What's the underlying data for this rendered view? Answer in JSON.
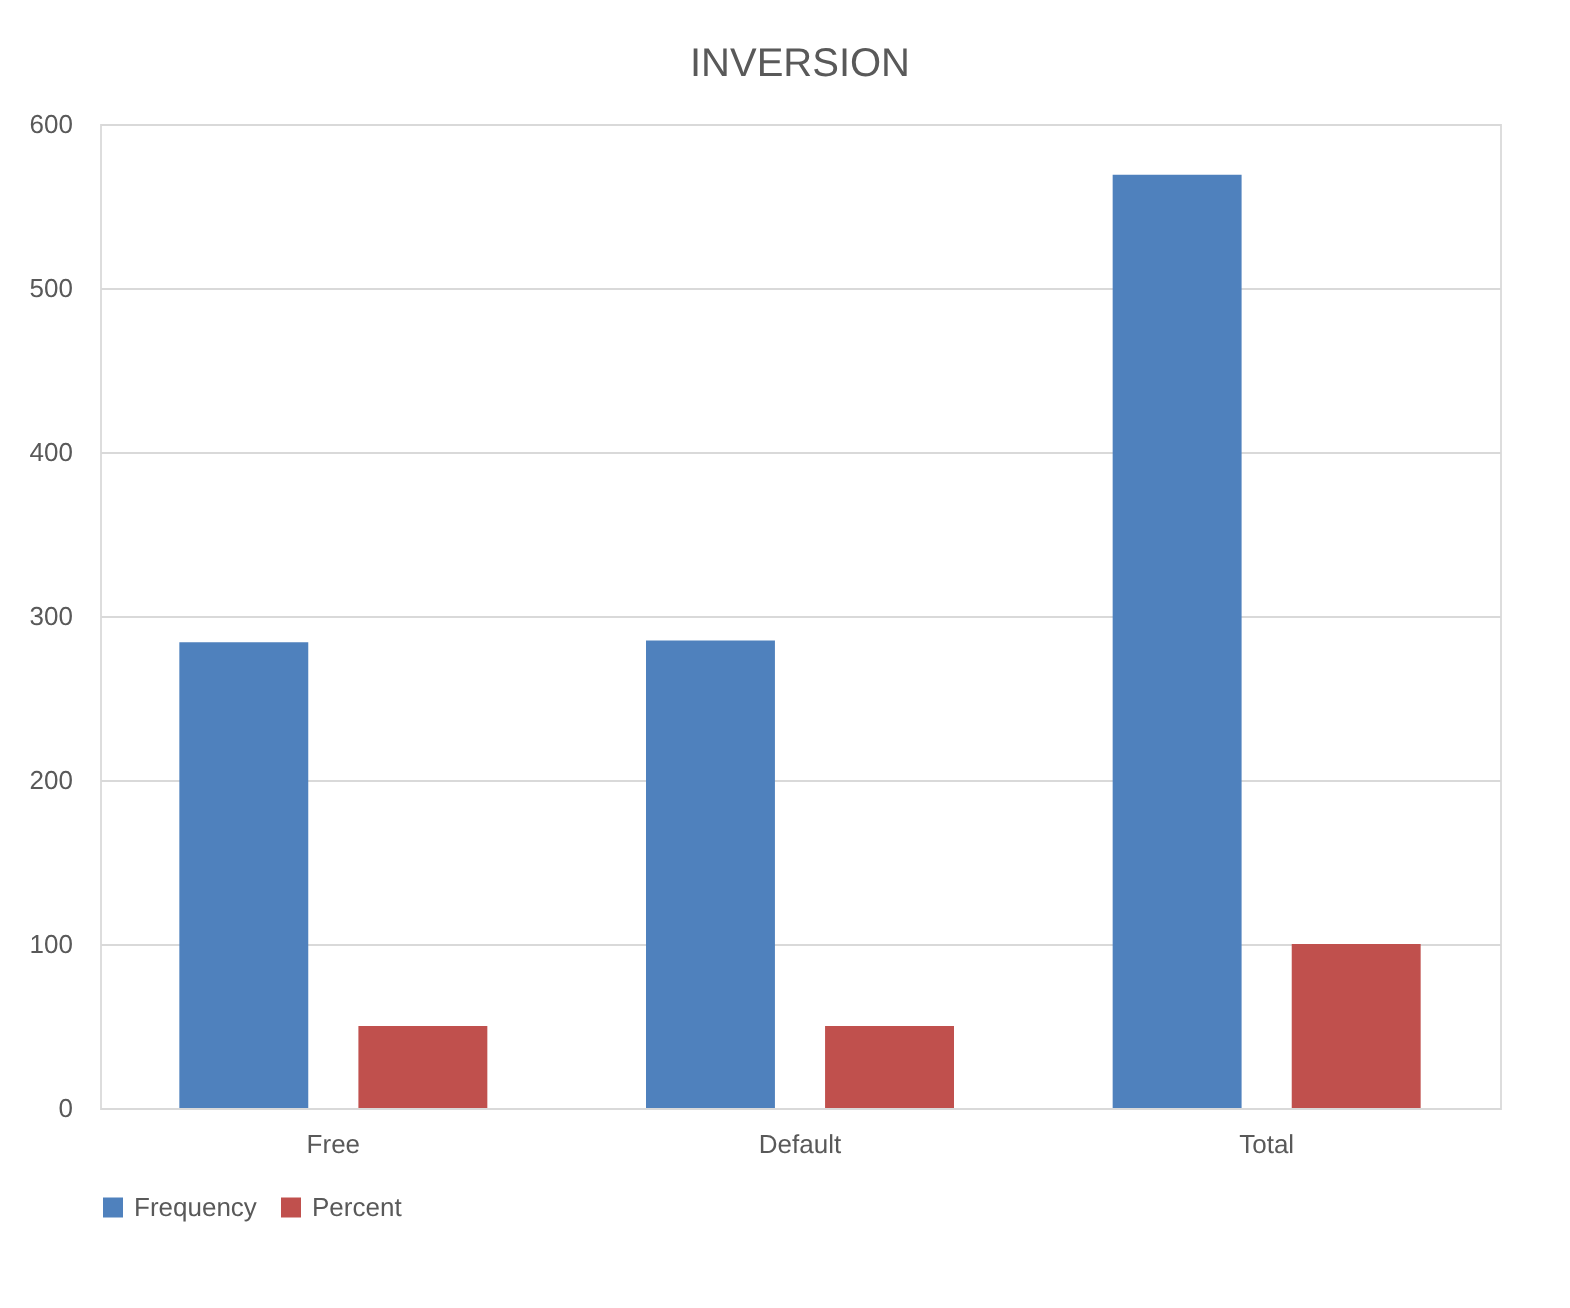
{
  "chart_data": {
    "type": "bar",
    "title": "INVERSION",
    "categories": [
      "Free",
      "Default",
      "Total"
    ],
    "series": [
      {
        "name": "Frequency",
        "color": "#4f81bd",
        "values": [
          284,
          285,
          569
        ]
      },
      {
        "name": "Percent",
        "color": "#c0504d",
        "values": [
          50,
          50,
          100
        ]
      }
    ],
    "ylim": [
      0,
      600
    ],
    "yticks": [
      0,
      100,
      200,
      300,
      400,
      500,
      600
    ],
    "grid": "y",
    "legend": "bottom"
  }
}
